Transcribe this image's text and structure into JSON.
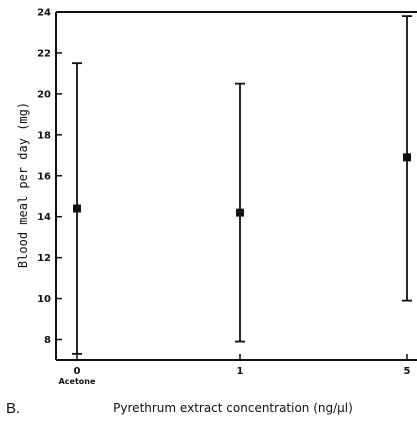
{
  "panel_label": "B.",
  "chart_data": {
    "type": "scatter",
    "xlabel": "Pyrethrum extract concentration (ng/µl)",
    "ylabel": "Blood meal per day (mg)",
    "x_categories": [
      "0",
      "1",
      "5"
    ],
    "x_sublabels": [
      "Acetone",
      "",
      ""
    ],
    "ylim": [
      7,
      24
    ],
    "y_ticks": [
      8,
      10,
      12,
      14,
      16,
      18,
      20,
      22,
      24
    ],
    "points": [
      {
        "x": "0",
        "y": 14.4,
        "low": 7.3,
        "high": 21.5
      },
      {
        "x": "1",
        "y": 14.2,
        "low": 7.9,
        "high": 20.5
      },
      {
        "x": "5",
        "y": 16.9,
        "low": 9.9,
        "high": 23.8
      }
    ]
  }
}
